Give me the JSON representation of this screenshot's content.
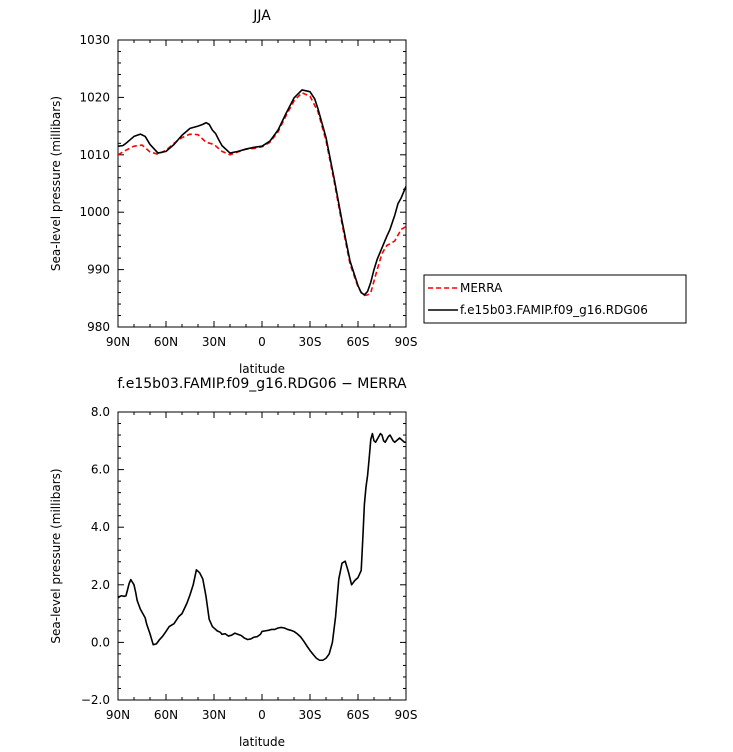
{
  "chart_data": [
    {
      "type": "line",
      "title": "JJA",
      "xlabel": "latitude",
      "ylabel": "Sea-level pressure (millibars)",
      "xlim": [
        90,
        -90
      ],
      "ylim": [
        980,
        1030
      ],
      "x_ticks": [
        90,
        60,
        30,
        0,
        -30,
        -60,
        -90
      ],
      "x_tick_labels": [
        "90N",
        "60N",
        "30N",
        "0",
        "30S",
        "60S",
        "90S"
      ],
      "y_ticks": [
        980,
        990,
        1000,
        1010,
        1020,
        1030
      ],
      "y_tick_labels": [
        "980",
        "990",
        "1000",
        "1010",
        "1020",
        "1030"
      ],
      "legend": {
        "placement": "right",
        "entries": [
          "MERRA",
          "f.e15b03.FAMIP.f09_g16.RDG06"
        ]
      },
      "series": [
        {
          "name": "MERRA",
          "color": "#ff0000",
          "dash": "dashed",
          "x": [
            90,
            85,
            80,
            75,
            70,
            65,
            60,
            55,
            50,
            45,
            40,
            35,
            30,
            25,
            20,
            15,
            10,
            5,
            0,
            -5,
            -10,
            -15,
            -20,
            -25,
            -30,
            -35,
            -40,
            -45,
            -50,
            -55,
            -60,
            -62,
            -64,
            -66,
            -68,
            -70,
            -72,
            -75,
            -78,
            -80,
            -83,
            -85,
            -87,
            -90
          ],
          "values": [
            1010.0,
            1010.8,
            1011.5,
            1011.7,
            1010.5,
            1010.1,
            1010.8,
            1012.0,
            1013.0,
            1013.6,
            1013.5,
            1012.2,
            1011.8,
            1010.6,
            1010.0,
            1010.5,
            1011.0,
            1011.1,
            1011.4,
            1012.2,
            1014.0,
            1016.8,
            1019.4,
            1020.8,
            1020.2,
            1017.5,
            1012.5,
            1005.5,
            998.0,
            991.0,
            987.0,
            986.0,
            985.5,
            985.6,
            986.0,
            988.0,
            990.0,
            992.8,
            994.2,
            994.5,
            995.0,
            996.0,
            997.0,
            997.5
          ]
        },
        {
          "name": "f.e15b03.FAMIP.f09_g16.RDG06",
          "color": "#000000",
          "dash": "solid",
          "x": [
            90,
            87,
            85,
            80,
            76,
            73,
            70,
            65,
            60,
            55,
            50,
            45,
            40,
            37,
            35,
            33,
            31,
            29,
            27,
            25,
            20,
            15,
            10,
            5,
            0,
            -5,
            -10,
            -15,
            -20,
            -25,
            -30,
            -33,
            -35,
            -40,
            -45,
            -50,
            -55,
            -60,
            -62,
            -64,
            -66,
            -68,
            -70,
            -72,
            -75,
            -78,
            -80,
            -83,
            -85,
            -87,
            -90
          ],
          "values": [
            1011.5,
            1011.6,
            1012.0,
            1013.2,
            1013.6,
            1013.2,
            1011.8,
            1010.3,
            1010.6,
            1011.8,
            1013.4,
            1014.6,
            1015.0,
            1015.3,
            1015.6,
            1015.3,
            1014.3,
            1013.7,
            1012.6,
            1011.6,
            1010.3,
            1010.6,
            1011.0,
            1011.3,
            1011.5,
            1012.4,
            1014.3,
            1017.2,
            1019.9,
            1021.3,
            1021.0,
            1019.7,
            1018.0,
            1013.0,
            1006.0,
            998.5,
            991.5,
            987.2,
            986.0,
            985.6,
            986.2,
            987.8,
            990.0,
            991.8,
            993.8,
            995.8,
            997.0,
            999.5,
            1001.5,
            1002.5,
            1004.5
          ]
        }
      ]
    },
    {
      "type": "line",
      "title": "f.e15b03.FAMIP.f09_g16.RDG06 − MERRA",
      "xlabel": "latitude",
      "ylabel": "Sea-level pressure (millibars)",
      "xlim": [
        90,
        -90
      ],
      "ylim": [
        -2.0,
        8.0
      ],
      "x_ticks": [
        90,
        60,
        30,
        0,
        -30,
        -60,
        -90
      ],
      "x_tick_labels": [
        "90N",
        "60N",
        "30N",
        "0",
        "30S",
        "60S",
        "90S"
      ],
      "y_ticks": [
        -2.0,
        0.0,
        2.0,
        4.0,
        6.0,
        8.0
      ],
      "y_tick_labels": [
        "−2.0",
        "0.0",
        "2.0",
        "4.0",
        "6.0",
        "8.0"
      ],
      "series": [
        {
          "color": "#000000",
          "dash": "solid",
          "x": [
            90,
            88,
            86,
            85,
            83,
            82,
            80,
            79,
            78,
            76,
            75,
            73,
            72,
            70,
            68,
            66,
            64,
            62,
            60,
            58,
            55,
            52,
            50,
            47,
            45,
            43,
            41,
            39,
            37,
            35,
            34,
            33,
            31,
            29,
            28,
            26,
            25,
            23,
            21,
            19,
            17,
            15,
            13,
            11,
            9,
            7,
            5,
            3,
            1,
            0,
            -2,
            -4,
            -6,
            -8,
            -10,
            -12,
            -14,
            -16,
            -18,
            -20,
            -22,
            -24,
            -26,
            -28,
            -30,
            -32,
            -34,
            -36,
            -38,
            -40,
            -42,
            -44,
            -46,
            -48,
            -50,
            -52,
            -54,
            -56,
            -58,
            -60,
            -62,
            -63,
            -64,
            -65,
            -66,
            -67,
            -68,
            -69,
            -70,
            -71,
            -72,
            -73,
            -74,
            -75,
            -76,
            -77,
            -78,
            -79,
            -80,
            -81,
            -82,
            -83,
            -84,
            -85,
            -86,
            -87,
            -88,
            -89,
            -90
          ],
          "values": [
            1.55,
            1.62,
            1.6,
            1.62,
            2.05,
            2.18,
            2.0,
            1.75,
            1.45,
            1.15,
            1.05,
            0.85,
            0.62,
            0.3,
            -0.08,
            -0.05,
            0.1,
            0.22,
            0.38,
            0.55,
            0.65,
            0.9,
            1.0,
            1.35,
            1.65,
            2.0,
            2.52,
            2.42,
            2.2,
            1.6,
            1.2,
            0.8,
            0.55,
            0.45,
            0.4,
            0.35,
            0.28,
            0.3,
            0.22,
            0.25,
            0.32,
            0.28,
            0.24,
            0.15,
            0.1,
            0.12,
            0.18,
            0.2,
            0.28,
            0.38,
            0.4,
            0.42,
            0.45,
            0.45,
            0.5,
            0.52,
            0.5,
            0.45,
            0.42,
            0.38,
            0.3,
            0.2,
            0.05,
            -0.12,
            -0.28,
            -0.42,
            -0.55,
            -0.62,
            -0.62,
            -0.55,
            -0.4,
            0.0,
            0.9,
            2.2,
            2.75,
            2.82,
            2.45,
            2.0,
            2.15,
            2.25,
            2.5,
            3.6,
            4.8,
            5.4,
            5.8,
            6.4,
            7.05,
            7.25,
            7.0,
            6.95,
            7.05,
            7.15,
            7.25,
            7.2,
            7.0,
            6.95,
            7.05,
            7.15,
            7.2,
            7.1,
            7.0,
            6.95,
            7.0,
            7.05,
            7.1,
            7.05,
            7.0,
            6.95,
            6.95
          ]
        }
      ]
    }
  ]
}
